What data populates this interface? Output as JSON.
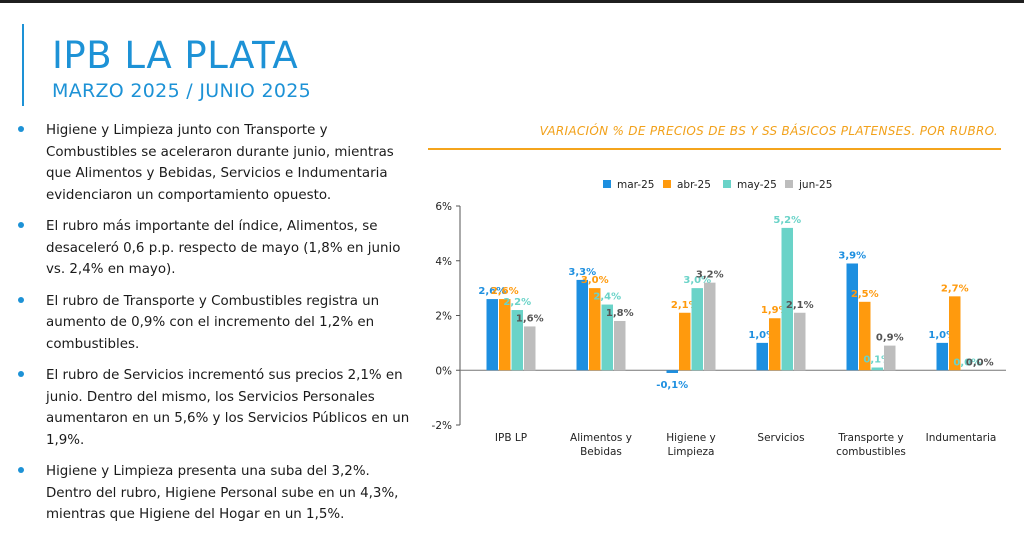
{
  "slide": {
    "title": "IPB LA PLATA",
    "subtitle": "MARZO 2025 / JUNIO 2025"
  },
  "bullets": [
    "Higiene y Limpieza junto con Transporte y Combustibles se aceleraron durante junio, mientras que Alimentos y Bebidas, Servicios e Indumentaria evidenciaron un comportamiento opuesto.",
    "El rubro más importante del índice, Alimentos, se desaceleró 0,6 p.p. respecto de mayo (1,8% en junio vs. 2,4% en mayo).",
    "El rubro de Transporte y Combustibles registra un aumento de 0,9% con el incremento del 1,2% en combustibles.",
    "El rubro de Servicios incrementó sus precios 2,1% en junio. Dentro del mismo, los Servicios Personales aumentaron en un 5,6% y los Servicios Públicos en un 1,9%.",
    "Higiene y Limpieza presenta una suba del 3,2%. Dentro del rubro, Higiene Personal sube en un 4,3%, mientras que Higiene del Hogar en un 1,5%."
  ],
  "chart_data": {
    "type": "bar",
    "title": "VARIACIÓN % DE PRECIOS DE BS Y SS BÁSICOS PLATENSES. POR RUBRO.",
    "categories": [
      [
        "IPB LP"
      ],
      [
        "Alimentos y",
        "Bebidas"
      ],
      [
        "Higiene y",
        "Limpieza"
      ],
      [
        "Servicios"
      ],
      [
        "Transporte y",
        "combustibles"
      ],
      [
        "Indumentaria"
      ]
    ],
    "series": [
      {
        "name": "mar-25",
        "color": "#1d8fe0",
        "values": [
          2.6,
          3.3,
          -0.1,
          1.0,
          3.9,
          1.0
        ],
        "labels": [
          "2,6%",
          "3,3%",
          "-0,1%",
          "1,0%",
          "3,9%",
          "1,0%"
        ]
      },
      {
        "name": "abr-25",
        "color": "#ff9a0d",
        "values": [
          2.6,
          3.0,
          2.1,
          1.9,
          2.5,
          2.7
        ],
        "labels": [
          "2,6%",
          "3,0%",
          "2,1%",
          "1,9%",
          "2,5%",
          "2,7%"
        ]
      },
      {
        "name": "may-25",
        "color": "#6ad3c8",
        "values": [
          2.2,
          2.4,
          3.0,
          5.2,
          0.1,
          0.0
        ],
        "labels": [
          "2,2%",
          "2,4%",
          "3,0%",
          "5,2%",
          "0,1%",
          "0,0%"
        ]
      },
      {
        "name": "jun-25",
        "color": "#bdbdbd",
        "values": [
          1.6,
          1.8,
          3.2,
          2.1,
          0.9,
          0.0
        ],
        "labels": [
          "1,6%",
          "1,8%",
          "3,2%",
          "2,1%",
          "0,9%",
          "0,0%"
        ]
      }
    ],
    "ylim": [
      -2,
      6
    ],
    "yticks": [
      -2,
      0,
      2,
      4,
      6
    ],
    "ytick_labels": [
      "-2%",
      "0%",
      "2%",
      "4%",
      "6%"
    ],
    "xlabel": "",
    "ylabel": "",
    "grid": false,
    "legend_position": "top"
  }
}
